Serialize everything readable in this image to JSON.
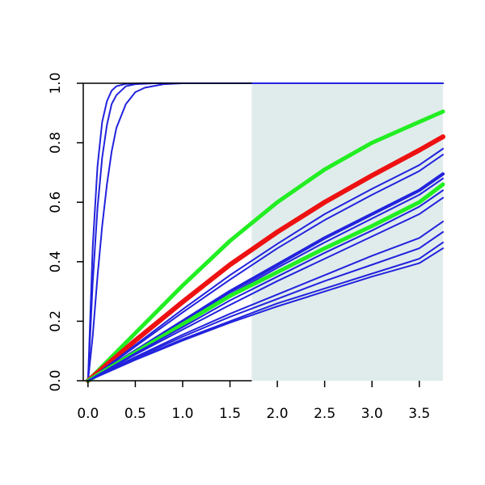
{
  "chart_data": {
    "type": "line",
    "title": "",
    "xlabel": "",
    "ylabel": "",
    "xlim": [
      -0.05,
      3.75
    ],
    "ylim": [
      0,
      1
    ],
    "x_ticks": [
      "0.0",
      "0.5",
      "1.0",
      "1.5",
      "2.0",
      "2.5",
      "3.0",
      "3.5"
    ],
    "y_ticks": [
      "0.0",
      "0.2",
      "0.4",
      "0.6",
      "0.8",
      "1.0"
    ],
    "grid": false,
    "legend": "none",
    "shaded_region": {
      "x_from": 1.73,
      "x_to": 3.75,
      "color": "#e0ecec"
    },
    "colors": {
      "blue": "#2222dd",
      "red": "#ee1111",
      "green": "#22ee22"
    },
    "series": [
      {
        "color": "#2222dd",
        "width": 2,
        "x": [
          0,
          0.05,
          0.1,
          0.15,
          0.2,
          0.25,
          0.3,
          0.4,
          0.6,
          3.75
        ],
        "y": [
          0,
          0.45,
          0.72,
          0.87,
          0.94,
          0.975,
          0.99,
          0.998,
          1.0,
          1.0
        ]
      },
      {
        "color": "#2222dd",
        "width": 2,
        "x": [
          0,
          0.05,
          0.1,
          0.15,
          0.2,
          0.25,
          0.3,
          0.4,
          0.5,
          0.7,
          3.75
        ],
        "y": [
          0,
          0.33,
          0.58,
          0.75,
          0.86,
          0.93,
          0.96,
          0.99,
          0.997,
          1.0,
          1.0
        ]
      },
      {
        "color": "#2222dd",
        "width": 2,
        "x": [
          0,
          0.05,
          0.1,
          0.15,
          0.2,
          0.25,
          0.3,
          0.4,
          0.5,
          0.6,
          0.8,
          1.0,
          3.75
        ],
        "y": [
          0,
          0.15,
          0.35,
          0.52,
          0.66,
          0.77,
          0.85,
          0.93,
          0.97,
          0.985,
          0.997,
          1.0,
          1.0
        ]
      },
      {
        "color": "#22ee22",
        "width": 5,
        "x": [
          0,
          0.5,
          1.0,
          1.5,
          2.0,
          2.5,
          3.0,
          3.5,
          3.75
        ],
        "y": [
          0,
          0.16,
          0.32,
          0.47,
          0.6,
          0.71,
          0.8,
          0.87,
          0.905
        ]
      },
      {
        "color": "#ee1111",
        "width": 6,
        "x": [
          0,
          0.5,
          1.0,
          1.5,
          2.0,
          2.5,
          3.0,
          3.5,
          3.75
        ],
        "y": [
          0,
          0.135,
          0.265,
          0.39,
          0.5,
          0.6,
          0.69,
          0.775,
          0.82
        ]
      },
      {
        "color": "#2222dd",
        "width": 2,
        "x": [
          0,
          0.5,
          1.0,
          1.5,
          2.0,
          2.5,
          3.0,
          3.5,
          3.75
        ],
        "y": [
          0,
          0.12,
          0.24,
          0.355,
          0.46,
          0.56,
          0.645,
          0.725,
          0.78
        ]
      },
      {
        "color": "#2222dd",
        "width": 2,
        "x": [
          0,
          0.5,
          1.0,
          1.5,
          2.0,
          2.5,
          3.0,
          3.5,
          3.75
        ],
        "y": [
          0,
          0.115,
          0.23,
          0.34,
          0.445,
          0.54,
          0.625,
          0.705,
          0.76
        ]
      },
      {
        "color": "#2222dd",
        "width": 4,
        "x": [
          0,
          0.5,
          1.0,
          1.5,
          2.0,
          2.5,
          3.0,
          3.5,
          3.75
        ],
        "y": [
          0,
          0.1,
          0.2,
          0.3,
          0.39,
          0.48,
          0.56,
          0.64,
          0.695
        ]
      },
      {
        "color": "#2222dd",
        "width": 2,
        "x": [
          0,
          0.5,
          1.0,
          1.5,
          2.0,
          2.5,
          3.0,
          3.5,
          3.75
        ],
        "y": [
          0,
          0.098,
          0.195,
          0.29,
          0.38,
          0.465,
          0.545,
          0.625,
          0.68
        ]
      },
      {
        "color": "#22ee22",
        "width": 5,
        "x": [
          0,
          0.5,
          1.0,
          1.5,
          2.0,
          2.5,
          3.0,
          3.5,
          3.75
        ],
        "y": [
          0,
          0.095,
          0.19,
          0.285,
          0.365,
          0.445,
          0.52,
          0.6,
          0.66
        ]
      },
      {
        "color": "#2222dd",
        "width": 2,
        "x": [
          0,
          0.5,
          1.0,
          1.5,
          2.0,
          2.5,
          3.0,
          3.5,
          3.75
        ],
        "y": [
          0,
          0.092,
          0.18,
          0.27,
          0.35,
          0.43,
          0.505,
          0.585,
          0.64
        ]
      },
      {
        "color": "#2222dd",
        "width": 2,
        "x": [
          0,
          0.5,
          1.0,
          1.5,
          2.0,
          2.5,
          3.0,
          3.5,
          3.75
        ],
        "y": [
          0,
          0.088,
          0.172,
          0.255,
          0.335,
          0.41,
          0.485,
          0.56,
          0.615
        ]
      },
      {
        "color": "#2222dd",
        "width": 2,
        "x": [
          0,
          0.5,
          1.0,
          1.5,
          2.0,
          2.5,
          3.0,
          3.5,
          3.75
        ],
        "y": [
          0,
          0.08,
          0.155,
          0.225,
          0.29,
          0.355,
          0.42,
          0.48,
          0.535
        ]
      },
      {
        "color": "#2222dd",
        "width": 2,
        "x": [
          0,
          0.5,
          1.0,
          1.5,
          2.0,
          2.5,
          3.0,
          3.5,
          3.75
        ],
        "y": [
          0,
          0.076,
          0.148,
          0.215,
          0.275,
          0.335,
          0.39,
          0.445,
          0.5
        ]
      },
      {
        "color": "#2222dd",
        "width": 2,
        "x": [
          0,
          0.5,
          1.0,
          1.5,
          2.0,
          2.5,
          3.0,
          3.5,
          3.75
        ],
        "y": [
          0,
          0.072,
          0.14,
          0.2,
          0.26,
          0.31,
          0.36,
          0.41,
          0.465
        ]
      },
      {
        "color": "#2222dd",
        "width": 2,
        "x": [
          0,
          0.5,
          1.0,
          1.5,
          2.0,
          2.5,
          3.0,
          3.5,
          3.75
        ],
        "y": [
          0,
          0.07,
          0.135,
          0.195,
          0.25,
          0.3,
          0.35,
          0.395,
          0.445
        ]
      }
    ]
  }
}
